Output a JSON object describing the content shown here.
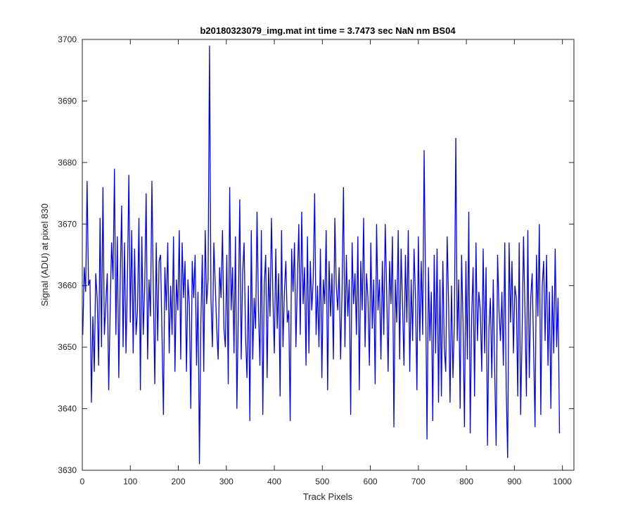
{
  "chart_data": {
    "type": "line",
    "title": "b20180323079_img.mat int time = 3.7473 sec  NaN nm BS04",
    "xlabel": "Track Pixels",
    "ylabel": "Signal (ADU) at pixel 830",
    "xlim": [
      0,
      1024
    ],
    "ylim": [
      3630,
      3700
    ],
    "xticks": [
      0,
      100,
      200,
      300,
      400,
      500,
      600,
      700,
      800,
      900,
      1000
    ],
    "yticks": [
      3630,
      3640,
      3650,
      3660,
      3670,
      3680,
      3690,
      3700
    ],
    "grid": false,
    "series": [
      {
        "color": "#0000ff",
        "x_start": 1,
        "x_step": 3,
        "values": [
          3652,
          3663,
          3659,
          3677,
          3660,
          3661,
          3641,
          3655,
          3646,
          3662,
          3658,
          3647,
          3671,
          3650,
          3676,
          3652,
          3657,
          3662,
          3643,
          3656,
          3667,
          3661,
          3679,
          3652,
          3668,
          3645,
          3661,
          3673,
          3650,
          3667,
          3649,
          3661,
          3678,
          3654,
          3669,
          3649,
          3666,
          3652,
          3656,
          3671,
          3643,
          3668,
          3652,
          3660,
          3675,
          3648,
          3661,
          3655,
          3677,
          3659,
          3644,
          3667,
          3651,
          3664,
          3665,
          3652,
          3639,
          3663,
          3656,
          3667,
          3649,
          3660,
          3652,
          3668,
          3646,
          3661,
          3656,
          3669,
          3648,
          3667,
          3658,
          3664,
          3646,
          3661,
          3657,
          3640,
          3664,
          3658,
          3665,
          3647,
          3659,
          3631,
          3654,
          3665,
          3646,
          3669,
          3657,
          3661,
          3699,
          3658,
          3650,
          3667,
          3660,
          3653,
          3648,
          3663,
          3658,
          3669,
          3653,
          3650,
          3665,
          3644,
          3676,
          3656,
          3663,
          3649,
          3668,
          3640,
          3656,
          3674,
          3648,
          3662,
          3667,
          3652,
          3645,
          3660,
          3638,
          3669,
          3648,
          3658,
          3653,
          3672,
          3656,
          3647,
          3669,
          3639,
          3660,
          3665,
          3645,
          3663,
          3655,
          3671,
          3658,
          3649,
          3666,
          3653,
          3662,
          3642,
          3669,
          3650,
          3659,
          3664,
          3654,
          3656,
          3638,
          3666,
          3659,
          3667,
          3650,
          3661,
          3670,
          3652,
          3672,
          3657,
          3663,
          3647,
          3668,
          3649,
          3664,
          3656,
          3661,
          3675,
          3652,
          3660,
          3650,
          3666,
          3645,
          3661,
          3657,
          3669,
          3643,
          3664,
          3655,
          3662,
          3648,
          3671,
          3660,
          3656,
          3663,
          3648,
          3659,
          3676,
          3650,
          3665,
          3655,
          3661,
          3639,
          3667,
          3657,
          3662,
          3652,
          3668,
          3643,
          3664,
          3656,
          3671,
          3650,
          3662,
          3658,
          3647,
          3667,
          3653,
          3661,
          3644,
          3670,
          3656,
          3661,
          3648,
          3664,
          3652,
          3670,
          3659,
          3646,
          3664,
          3657,
          3668,
          3637,
          3661,
          3654,
          3669,
          3648,
          3666,
          3657,
          3647,
          3665,
          3654,
          3669,
          3646,
          3661,
          3651,
          3666,
          3658,
          3643,
          3668,
          3651,
          3664,
          3652,
          3682,
          3660,
          3635,
          3663,
          3651,
          3659,
          3638,
          3665,
          3649,
          3666,
          3641,
          3661,
          3642,
          3664,
          3650,
          3646,
          3668,
          3657,
          3641,
          3660,
          3645,
          3654,
          3684,
          3651,
          3661,
          3640,
          3665,
          3654,
          3637,
          3664,
          3648,
          3672,
          3636,
          3655,
          3663,
          3642,
          3667,
          3651,
          3659,
          3656,
          3646,
          3666,
          3649,
          3663,
          3634,
          3653,
          3658,
          3645,
          3661,
          3646,
          3634,
          3665,
          3656,
          3651,
          3659,
          3647,
          3667,
          3643,
          3632,
          3667,
          3654,
          3664,
          3649,
          3660,
          3658,
          3642,
          3667,
          3639,
          3652,
          3668,
          3656,
          3642,
          3669,
          3645,
          3658,
          3662,
          3650,
          3637,
          3665,
          3655,
          3670,
          3639,
          3660,
          3664,
          3651,
          3665,
          3647,
          3659,
          3640,
          3660,
          3649,
          3666,
          3650,
          3658,
          3636
        ]
      }
    ]
  }
}
